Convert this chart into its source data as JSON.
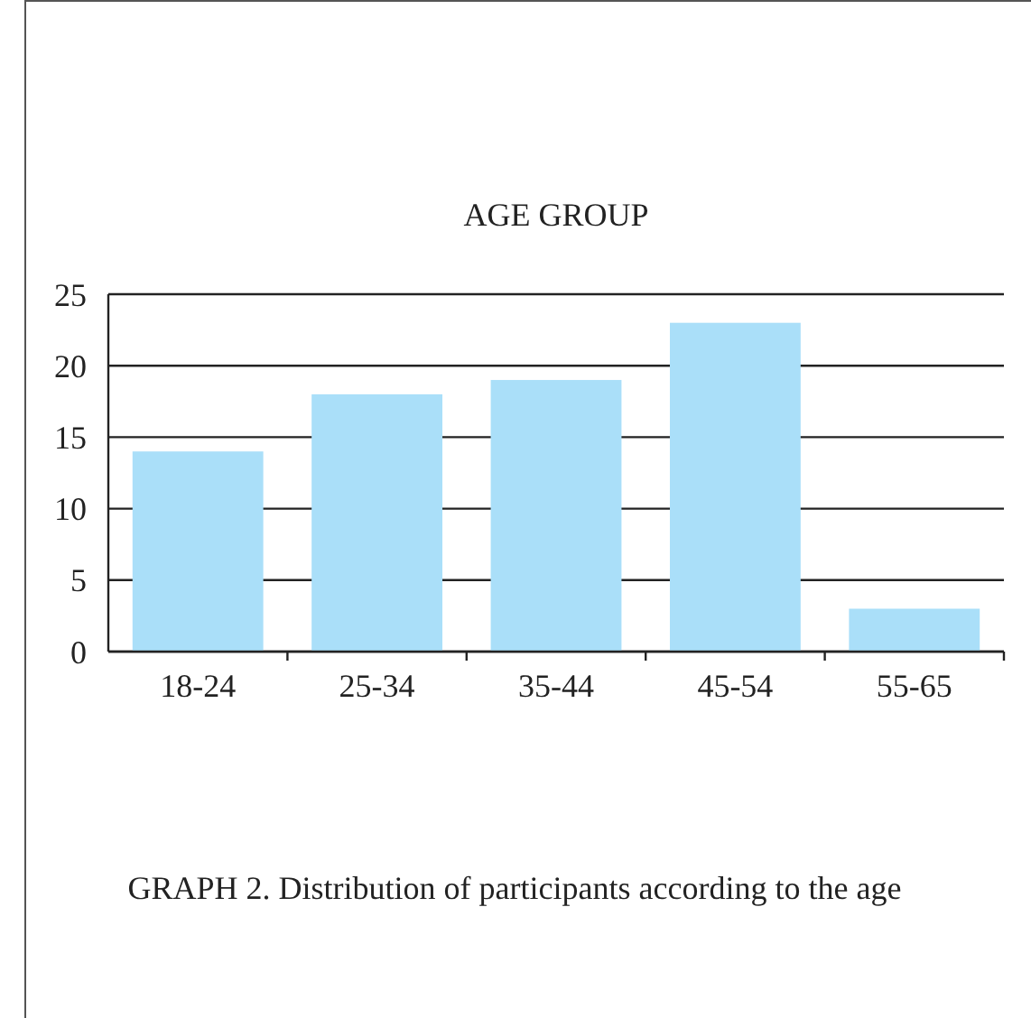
{
  "chart_data": {
    "type": "bar",
    "title": "AGE GROUP",
    "categories": [
      "18-24",
      "25-34",
      "35-44",
      "45-54",
      "55-65"
    ],
    "values": [
      14,
      18,
      19,
      23,
      3
    ],
    "color": "#aadff9",
    "ylim": [
      0,
      25
    ],
    "yticks": [
      0,
      5,
      10,
      15,
      20,
      25
    ],
    "grid": "y",
    "annotations": [
      "GRAPH 2. Distribution of participants according to the age"
    ]
  }
}
